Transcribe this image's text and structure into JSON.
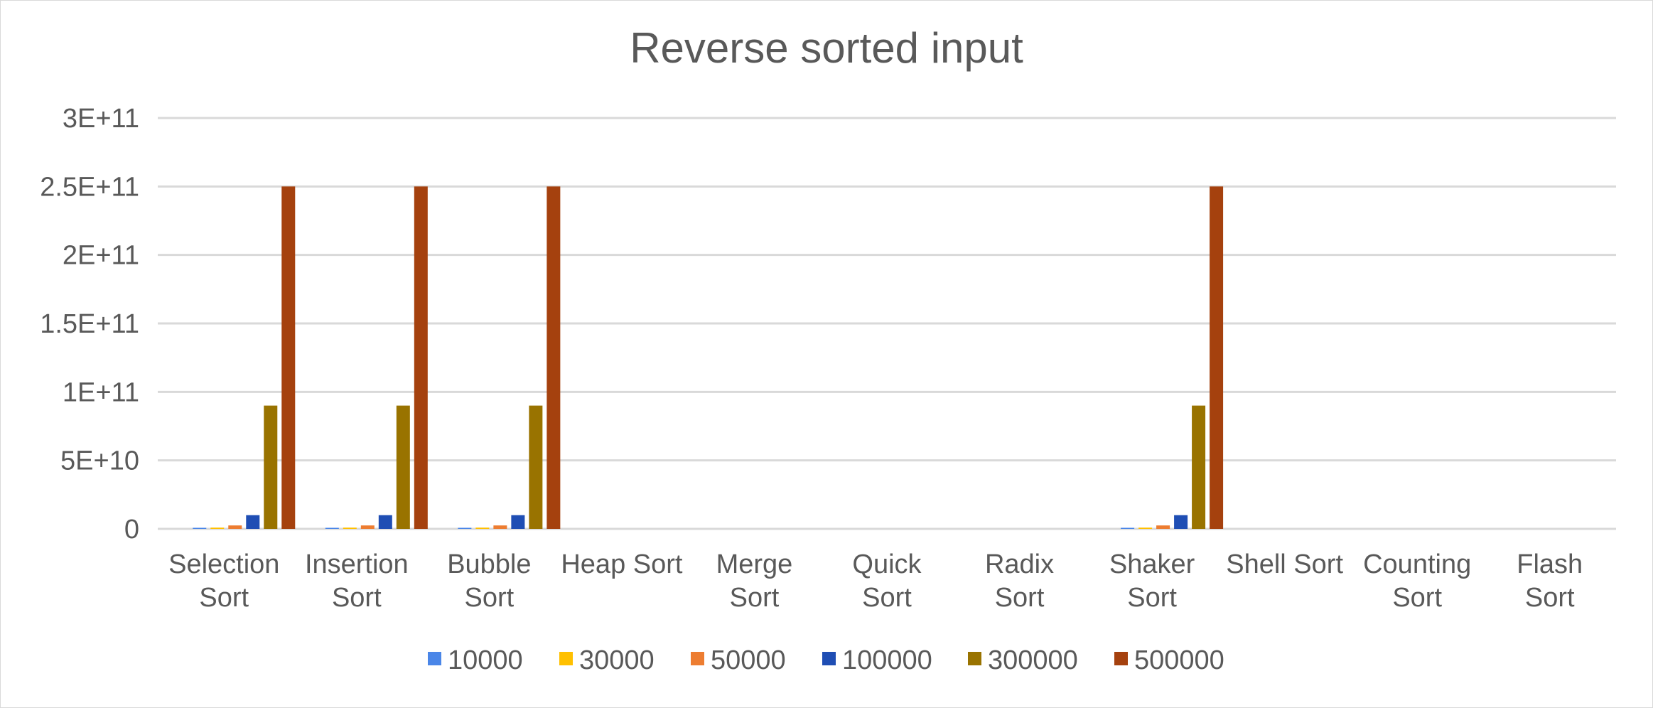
{
  "chart_data": {
    "type": "bar",
    "title": "Reverse sorted input",
    "xlabel": "",
    "ylabel": "",
    "ylim": [
      0,
      300000000000
    ],
    "yticks": [
      {
        "value": 0,
        "label": "0"
      },
      {
        "value": 50000000000,
        "label": "5E+10"
      },
      {
        "value": 100000000000,
        "label": "1E+11"
      },
      {
        "value": 150000000000,
        "label": "1.5E+11"
      },
      {
        "value": 200000000000,
        "label": "2E+11"
      },
      {
        "value": 250000000000,
        "label": "2.5E+11"
      },
      {
        "value": 300000000000,
        "label": "3E+11"
      }
    ],
    "grid": true,
    "legend_position": "bottom",
    "categories": [
      [
        "Selection",
        "Sort"
      ],
      [
        "Insertion",
        "Sort"
      ],
      [
        "Bubble",
        "Sort"
      ],
      [
        "Heap Sort"
      ],
      [
        "Merge",
        "Sort"
      ],
      [
        "Quick",
        "Sort"
      ],
      [
        "Radix",
        "Sort"
      ],
      [
        "Shaker",
        "Sort"
      ],
      [
        "Shell Sort"
      ],
      [
        "Counting",
        "Sort"
      ],
      [
        "Flash",
        "Sort"
      ]
    ],
    "series": [
      {
        "name": "10000",
        "color": "#4a86e8",
        "values": [
          100000000,
          100000000,
          100000000,
          0,
          0,
          0,
          0,
          100000000,
          0,
          0,
          0
        ]
      },
      {
        "name": "30000",
        "color": "#ffc000",
        "values": [
          900000000,
          900000000,
          900000000,
          0,
          0,
          0,
          0,
          900000000,
          0,
          0,
          0
        ]
      },
      {
        "name": "50000",
        "color": "#ed7d31",
        "values": [
          2500000000,
          2500000000,
          2500000000,
          0,
          0,
          0,
          0,
          2500000000,
          0,
          0,
          0
        ]
      },
      {
        "name": "100000",
        "color": "#1f4eb4",
        "values": [
          10000000000,
          10000000000,
          10000000000,
          0,
          0,
          0,
          0,
          10000000000,
          0,
          0,
          0
        ]
      },
      {
        "name": "300000",
        "color": "#997300",
        "values": [
          90000000000,
          90000000000,
          90000000000,
          0,
          0,
          0,
          0,
          90000000000,
          0,
          0,
          0
        ]
      },
      {
        "name": "500000",
        "color": "#a5410e",
        "values": [
          250000000000,
          250000000000,
          250000000000,
          0,
          0,
          0,
          0,
          250000000000,
          0,
          0,
          0
        ]
      }
    ]
  }
}
